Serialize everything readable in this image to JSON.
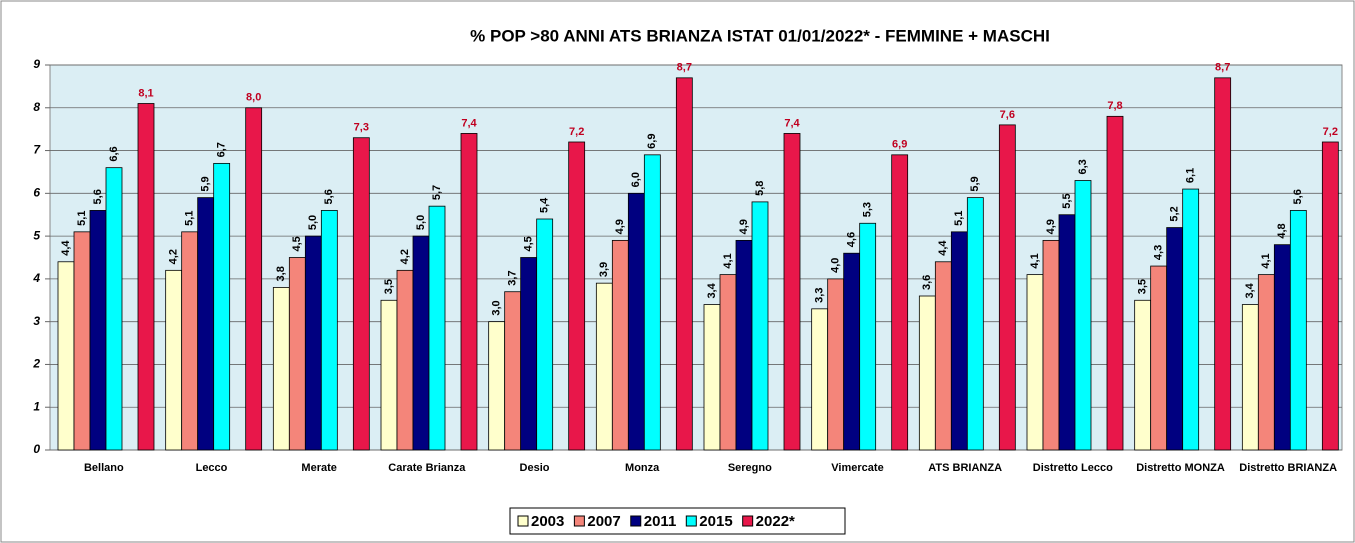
{
  "chart_data": {
    "type": "bar",
    "title": "% POP >80 ANNI ATS BRIANZA ISTAT 01/01/2022* - FEMMINE +  MASCHI",
    "categories": [
      "Bellano",
      "Lecco",
      "Merate",
      "Carate Brianza",
      "Desio",
      "Monza",
      "Seregno",
      "Vimercate",
      "ATS BRIANZA",
      "Distretto Lecco",
      "Distretto MONZA",
      "Distretto BRIANZA"
    ],
    "series": [
      {
        "name": "2003",
        "color": "#ffffcc",
        "values": [
          4.4,
          4.2,
          3.8,
          3.5,
          3.0,
          3.9,
          3.4,
          3.3,
          3.6,
          4.1,
          3.5,
          3.4
        ],
        "value_labels": [
          "4,4",
          "4,2",
          "3,8",
          "3,5",
          "3,0",
          "3,9",
          "3,4",
          "3,3",
          "3,6",
          "4,1",
          "3,5",
          "3,4"
        ]
      },
      {
        "name": "2007",
        "color": "#f4857a",
        "values": [
          5.1,
          5.1,
          4.5,
          4.2,
          3.7,
          4.9,
          4.1,
          4.0,
          4.4,
          4.9,
          4.3,
          4.1
        ],
        "value_labels": [
          "5,1",
          "5,1",
          "4,5",
          "4,2",
          "3,7",
          "4,9",
          "4,1",
          "4,0",
          "4,4",
          "4,9",
          "4,3",
          "4,1"
        ]
      },
      {
        "name": "2011",
        "color": "#000080",
        "values": [
          5.6,
          5.9,
          5.0,
          5.0,
          4.5,
          6.0,
          4.9,
          4.6,
          5.1,
          5.5,
          5.2,
          4.8
        ],
        "value_labels": [
          "5,6",
          "5,9",
          "5,0",
          "5,0",
          "4,5",
          "6,0",
          "4,9",
          "4,6",
          "5,1",
          "5,5",
          "5,2",
          "4,8"
        ]
      },
      {
        "name": "2015",
        "color": "#00ffff",
        "values": [
          6.6,
          6.7,
          5.6,
          5.7,
          5.4,
          6.9,
          5.8,
          5.3,
          5.9,
          6.3,
          6.1,
          5.6
        ],
        "value_labels": [
          "6,6",
          "6,7",
          "5,6",
          "5,7",
          "5,4",
          "6,9",
          "5,8",
          "5,3",
          "5,9",
          "6,3",
          "6,1",
          "5,6"
        ]
      },
      {
        "name": "2022*",
        "color": "#e8174a",
        "values": [
          8.1,
          8.0,
          7.3,
          7.4,
          7.2,
          8.7,
          7.4,
          6.9,
          7.6,
          7.8,
          8.7,
          7.2
        ],
        "value_labels": [
          "8,1",
          "8,0",
          "7,3",
          "7,4",
          "7,2",
          "8,7",
          "7,4",
          "6,9",
          "7,6",
          "7,8",
          "8,7",
          "7,2"
        ]
      }
    ],
    "ylim": [
      0,
      9
    ],
    "yticks": [
      0,
      1,
      2,
      3,
      4,
      5,
      6,
      7,
      8,
      9
    ],
    "grid": true,
    "legend": "bottom"
  }
}
